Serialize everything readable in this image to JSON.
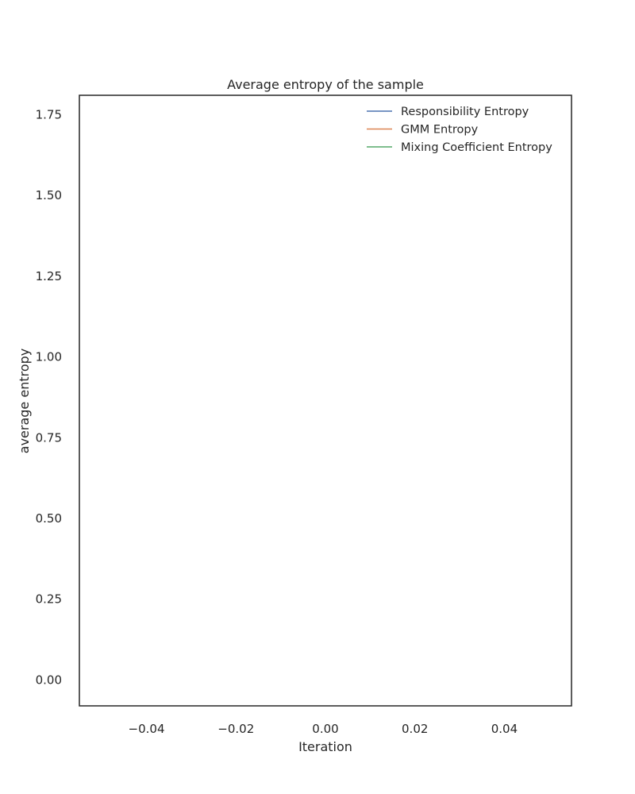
{
  "chart_data": {
    "type": "line",
    "title": "Average entropy of the sample",
    "xlabel": "Iteration",
    "ylabel": "average entropy",
    "xlim": [
      -0.055,
      0.055
    ],
    "ylim": [
      -0.08,
      1.81
    ],
    "x_ticks": [
      -0.04,
      -0.02,
      0.0,
      0.02,
      0.04
    ],
    "x_tick_labels": [
      "−0.04",
      "−0.02",
      "0.00",
      "0.02",
      "0.04"
    ],
    "y_ticks": [
      0.0,
      0.25,
      0.5,
      0.75,
      1.0,
      1.25,
      1.5,
      1.75
    ],
    "y_tick_labels": [
      "0.00",
      "0.25",
      "0.50",
      "0.75",
      "1.00",
      "1.25",
      "1.50",
      "1.75"
    ],
    "grid": false,
    "legend_position": "top-right",
    "series": [
      {
        "name": "Responsibility Entropy",
        "color": "#4c72b0",
        "x": [],
        "y": []
      },
      {
        "name": "GMM Entropy",
        "color": "#dd8452",
        "x": [],
        "y": []
      },
      {
        "name": "Mixing Coefficient Entropy",
        "color": "#55a868",
        "x": [],
        "y": []
      }
    ]
  }
}
